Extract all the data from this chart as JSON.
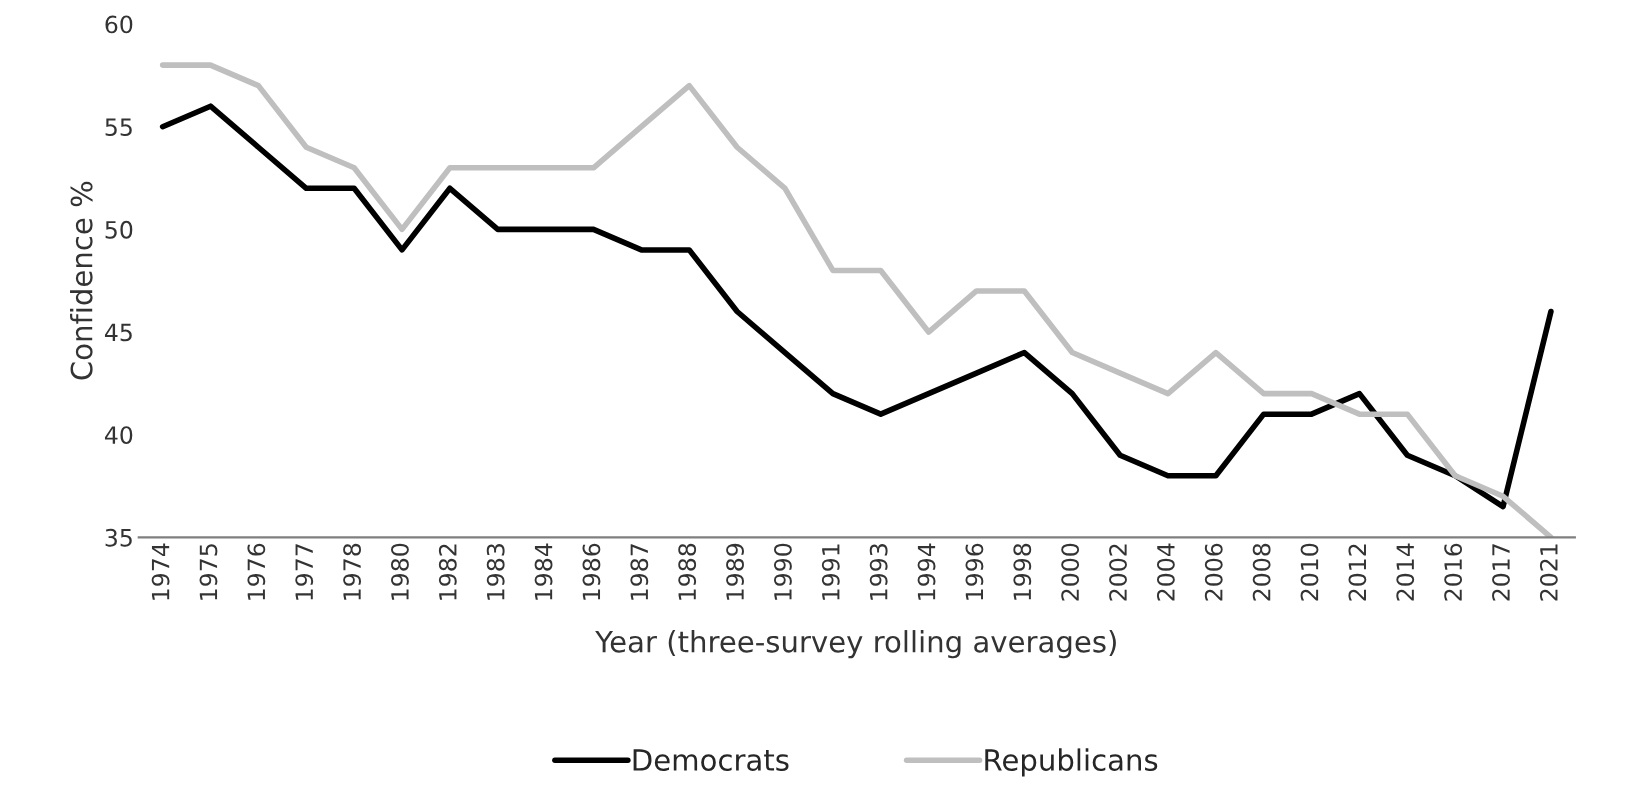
{
  "chart_data": {
    "type": "line",
    "xlabel": "Year (three-survey rolling averages)",
    "ylabel": "Confidence %",
    "categories": [
      "1974",
      "1975",
      "1976",
      "1977",
      "1978",
      "1980",
      "1982",
      "1983",
      "1984",
      "1986",
      "1987",
      "1988",
      "1989",
      "1990",
      "1991",
      "1993",
      "1994",
      "1996",
      "1998",
      "2000",
      "2002",
      "2004",
      "2006",
      "2008",
      "2010",
      "2012",
      "2014",
      "2016",
      "2017",
      "2021"
    ],
    "series": [
      {
        "name": "Democrats",
        "color": "#000000",
        "values": [
          55,
          56,
          54,
          52,
          52,
          49,
          52,
          50,
          50,
          50,
          49,
          49,
          46,
          44,
          42,
          41,
          42,
          43,
          44,
          42,
          39,
          38,
          38,
          41,
          41,
          42,
          39,
          38,
          36.5,
          46
        ]
      },
      {
        "name": "Republicans",
        "color": "#bfbfbf",
        "values": [
          58,
          58,
          57,
          54,
          53,
          50,
          53,
          53,
          53,
          53,
          55,
          57,
          54,
          52,
          48,
          48,
          45,
          47,
          47,
          44,
          43,
          42,
          44,
          42,
          42,
          41,
          41,
          38,
          37,
          35
        ]
      }
    ],
    "ylim": [
      35,
      60
    ],
    "yticks": [
      35,
      40,
      45,
      50,
      55,
      60
    ],
    "grid": false,
    "legend": "bottom",
    "line_style": "solid",
    "marker": "none"
  }
}
